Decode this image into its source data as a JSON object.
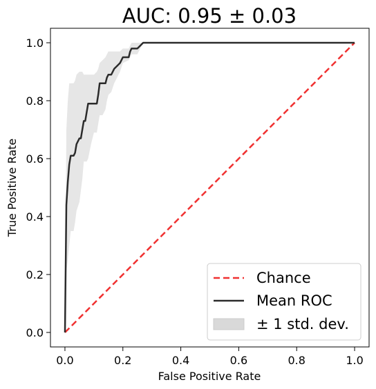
{
  "chart_data": {
    "type": "line",
    "title": "AUC: 0.95 ± 0.03",
    "xlabel": "False Positive Rate",
    "ylabel": "True Positive Rate",
    "xlim": [
      -0.05,
      1.05
    ],
    "ylim": [
      -0.05,
      1.05
    ],
    "xticks": [
      "0.0",
      "0.2",
      "0.4",
      "0.6",
      "0.8",
      "1.0"
    ],
    "yticks": [
      "0.0",
      "0.2",
      "0.4",
      "0.6",
      "0.8",
      "1.0"
    ],
    "grid": false,
    "legend_position": "lower-right",
    "series": [
      {
        "name": "Chance",
        "style": "dashed",
        "color": "#f03030",
        "x": [
          0,
          1
        ],
        "y": [
          0,
          1
        ]
      },
      {
        "name": "Mean ROC",
        "style": "solid",
        "color": "#2b2b2b",
        "x": [
          0.0,
          0.005,
          0.01,
          0.015,
          0.02,
          0.03,
          0.035,
          0.04,
          0.05,
          0.055,
          0.06,
          0.065,
          0.07,
          0.075,
          0.08,
          0.09,
          0.1,
          0.11,
          0.115,
          0.12,
          0.13,
          0.14,
          0.145,
          0.15,
          0.16,
          0.17,
          0.18,
          0.19,
          0.2,
          0.22,
          0.225,
          0.23,
          0.25,
          0.26,
          0.27,
          0.28,
          0.5,
          1.0
        ],
        "y": [
          0.0,
          0.44,
          0.52,
          0.58,
          0.61,
          0.61,
          0.62,
          0.65,
          0.67,
          0.67,
          0.7,
          0.73,
          0.73,
          0.76,
          0.79,
          0.79,
          0.79,
          0.79,
          0.82,
          0.86,
          0.86,
          0.86,
          0.88,
          0.89,
          0.89,
          0.91,
          0.92,
          0.93,
          0.95,
          0.95,
          0.97,
          0.98,
          0.98,
          0.99,
          1.0,
          1.0,
          1.0,
          1.0
        ]
      }
    ],
    "band": {
      "name": "± 1 std. dev.",
      "color": "#d9d9d9",
      "x": [
        0.0,
        0.005,
        0.01,
        0.015,
        0.02,
        0.03,
        0.035,
        0.04,
        0.05,
        0.055,
        0.06,
        0.065,
        0.07,
        0.075,
        0.08,
        0.09,
        0.1,
        0.11,
        0.115,
        0.12,
        0.13,
        0.14,
        0.145,
        0.15,
        0.16,
        0.17,
        0.18,
        0.19,
        0.2,
        0.22,
        0.225,
        0.23,
        0.25,
        0.26,
        0.27,
        0.28,
        0.5,
        1.0
      ],
      "upper": [
        0.0,
        0.7,
        0.8,
        0.86,
        0.86,
        0.86,
        0.87,
        0.89,
        0.9,
        0.9,
        0.9,
        0.89,
        0.89,
        0.89,
        0.89,
        0.89,
        0.89,
        0.9,
        0.91,
        0.93,
        0.94,
        0.95,
        0.96,
        0.97,
        0.97,
        0.97,
        0.97,
        0.97,
        0.98,
        0.98,
        0.99,
        1.0,
        1.0,
        1.0,
        1.0,
        1.0,
        1.0,
        1.0
      ],
      "lower": [
        0.0,
        0.21,
        0.25,
        0.3,
        0.35,
        0.35,
        0.38,
        0.42,
        0.45,
        0.49,
        0.53,
        0.59,
        0.59,
        0.59,
        0.6,
        0.65,
        0.69,
        0.69,
        0.72,
        0.75,
        0.75,
        0.77,
        0.8,
        0.82,
        0.83,
        0.86,
        0.88,
        0.9,
        0.93,
        0.94,
        0.95,
        0.96,
        0.96,
        0.98,
        1.0,
        1.0,
        1.0,
        1.0
      ]
    }
  }
}
